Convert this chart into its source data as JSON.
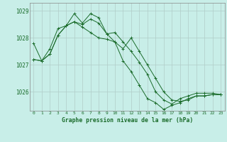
{
  "title": "Graphe pression niveau de la mer (hPa)",
  "bg_color": "#c8eee8",
  "grid_color": "#b0ccc8",
  "line_color": "#1a6b2a",
  "x_ticks": [
    0,
    1,
    2,
    3,
    4,
    5,
    6,
    7,
    8,
    9,
    10,
    11,
    12,
    13,
    14,
    15,
    16,
    17,
    18,
    19,
    20,
    21,
    22,
    23
  ],
  "ylim": [
    1025.3,
    1029.3
  ],
  "yticks": [
    1026,
    1027,
    1028,
    1029
  ],
  "series1": [
    1027.2,
    1027.15,
    1027.4,
    1028.1,
    1028.45,
    1028.6,
    1028.5,
    1028.7,
    1028.55,
    1028.15,
    1028.2,
    1027.85,
    1027.5,
    1027.1,
    1026.65,
    1026.0,
    1025.7,
    1025.55,
    1025.75,
    1025.85,
    1025.95,
    1025.95,
    1025.95,
    1025.9
  ],
  "series2": [
    1027.2,
    1027.15,
    1027.6,
    1028.35,
    1028.45,
    1028.9,
    1028.55,
    1028.9,
    1028.75,
    1028.15,
    1027.85,
    1027.15,
    1026.75,
    1026.25,
    1025.75,
    1025.6,
    1025.35,
    1025.5,
    1025.6,
    1025.75,
    1025.85,
    1025.85,
    1025.9,
    1025.9
  ],
  "series3": [
    1027.8,
    1027.15,
    1027.4,
    1028.1,
    1028.45,
    1028.6,
    1028.4,
    1028.2,
    1028.0,
    1027.95,
    1027.85,
    1027.6,
    1028.0,
    1027.5,
    1027.0,
    1026.5,
    1026.0,
    1025.7,
    1025.65,
    1025.7,
    1025.85,
    1025.85,
    1025.9,
    1025.9
  ]
}
